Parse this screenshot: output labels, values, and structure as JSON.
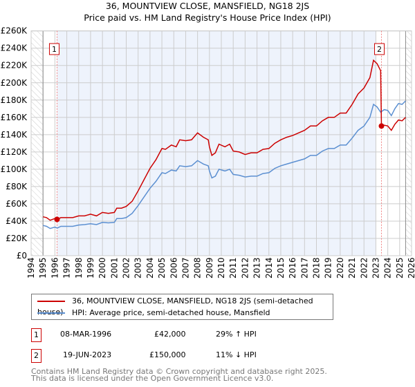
{
  "chart_data": {
    "type": "line",
    "title": "36, MOUNTVIEW CLOSE, MANSFIELD, NG18 2JS",
    "subtitle": "Price paid vs. HM Land Registry's House Price Index (HPI)",
    "xlim": [
      1994,
      2026
    ],
    "ylim": [
      0,
      260000
    ],
    "x_ticks": [
      "1994",
      "1995",
      "1996",
      "1997",
      "1998",
      "1999",
      "2000",
      "2001",
      "2002",
      "2003",
      "2004",
      "2005",
      "2006",
      "2007",
      "2008",
      "2009",
      "2010",
      "2011",
      "2012",
      "2013",
      "2014",
      "2015",
      "2016",
      "2017",
      "2018",
      "2019",
      "2020",
      "2021",
      "2022",
      "2023",
      "2024",
      "2025",
      "2026"
    ],
    "y_ticks": [
      "£0",
      "£20K",
      "£40K",
      "£60K",
      "£80K",
      "£100K",
      "£120K",
      "£140K",
      "£160K",
      "£180K",
      "£200K",
      "£220K",
      "£240K",
      "£260K"
    ],
    "grid": true,
    "colors": {
      "price": "#cc0000",
      "hpi": "#5b8fd1",
      "shade": "#eef3fc"
    },
    "series": [
      {
        "name": "36, MOUNTVIEW CLOSE, MANSFIELD, NG18 2JS (semi-detached house)",
        "x": [
          1995.0,
          1995.3,
          1995.6,
          1996.0,
          1996.18,
          1996.5,
          1997.0,
          1997.5,
          1998.0,
          1998.5,
          1999.0,
          1999.5,
          2000.0,
          2000.5,
          2001.0,
          2001.2,
          2001.6,
          2002.0,
          2002.5,
          2003.0,
          2003.5,
          2004.0,
          2004.5,
          2005.0,
          2005.3,
          2005.8,
          2006.2,
          2006.5,
          2007.0,
          2007.5,
          2008.0,
          2008.5,
          2008.9,
          2009.0,
          2009.2,
          2009.5,
          2009.8,
          2010.3,
          2010.7,
          2011.0,
          2011.5,
          2012.0,
          2012.5,
          2013.0,
          2013.5,
          2014.0,
          2014.5,
          2015.0,
          2015.5,
          2016.0,
          2016.5,
          2017.0,
          2017.5,
          2018.0,
          2018.5,
          2019.0,
          2019.5,
          2020.0,
          2020.5,
          2021.0,
          2021.5,
          2022.0,
          2022.5,
          2022.8,
          2023.1,
          2023.4,
          2023.47,
          2023.7,
          2024.0,
          2024.3,
          2024.6,
          2024.9,
          2025.2,
          2025.5
        ],
        "values": [
          45,
          44,
          41,
          43,
          42,
          44,
          44,
          44,
          46,
          46,
          48,
          46,
          50,
          49,
          50,
          55,
          55,
          57,
          63,
          75,
          88,
          101,
          111,
          124,
          123,
          128,
          126,
          134,
          133,
          134,
          142,
          137,
          134,
          126,
          116,
          119,
          129,
          126,
          129,
          121,
          120,
          117,
          119,
          119,
          123,
          124,
          130,
          134,
          137,
          139,
          142,
          145,
          150,
          150,
          156,
          160,
          160,
          165,
          165,
          175,
          187,
          194,
          206,
          226,
          222,
          214,
          150,
          151,
          150,
          145,
          152,
          157,
          156,
          160
        ]
      },
      {
        "name": "HPI: Average price, semi-detached house, Mansfield",
        "x": [
          1995.0,
          1995.3,
          1995.6,
          1996.0,
          1996.2,
          1996.5,
          1997.0,
          1997.5,
          1998.0,
          1998.5,
          1999.0,
          1999.5,
          2000.0,
          2000.5,
          2001.0,
          2001.2,
          2001.6,
          2002.0,
          2002.5,
          2003.0,
          2003.5,
          2004.0,
          2004.5,
          2005.0,
          2005.3,
          2005.8,
          2006.2,
          2006.5,
          2007.0,
          2007.5,
          2008.0,
          2008.5,
          2008.9,
          2009.0,
          2009.2,
          2009.5,
          2009.8,
          2010.3,
          2010.7,
          2011.0,
          2011.5,
          2012.0,
          2012.5,
          2013.0,
          2013.5,
          2014.0,
          2014.5,
          2015.0,
          2015.5,
          2016.0,
          2016.5,
          2017.0,
          2017.5,
          2018.0,
          2018.5,
          2019.0,
          2019.5,
          2020.0,
          2020.5,
          2021.0,
          2021.5,
          2022.0,
          2022.5,
          2022.8,
          2023.1,
          2023.4,
          2023.7,
          2024.0,
          2024.3,
          2024.6,
          2024.9,
          2025.2,
          2025.5
        ],
        "values": [
          35,
          34,
          31.5,
          33,
          32,
          34,
          34,
          34,
          35.5,
          36,
          37,
          36,
          38.5,
          38,
          38.5,
          43,
          43,
          44,
          49,
          58,
          68,
          78,
          86,
          96,
          95,
          99,
          98,
          104,
          103,
          104,
          110,
          106,
          104,
          98,
          90,
          92,
          100,
          98,
          100,
          94,
          93,
          91,
          92,
          92,
          95,
          96,
          101,
          104,
          106,
          108,
          110,
          112,
          116,
          116,
          121,
          124,
          124,
          128,
          128,
          136,
          145,
          150,
          160,
          175,
          172,
          166,
          169,
          168,
          162,
          170,
          176,
          175,
          179
        ]
      }
    ],
    "value_unit": "£K",
    "annotations": [
      {
        "label": "1",
        "x": 1996.18,
        "y": 42000
      },
      {
        "label": "2",
        "x": 2023.47,
        "y": 150000
      }
    ]
  },
  "legend": {
    "price": "36, MOUNTVIEW CLOSE, MANSFIELD, NG18 2JS (semi-detached house)",
    "hpi": "HPI: Average price, semi-detached house, Mansfield"
  },
  "sales": [
    {
      "num": "1",
      "date": "08-MAR-1996",
      "price": "£42,000",
      "hpi": "29% ↑ HPI"
    },
    {
      "num": "2",
      "date": "19-JUN-2023",
      "price": "£150,000",
      "hpi": "11% ↓ HPI"
    }
  ],
  "footer": {
    "line1": "Contains HM Land Registry data © Crown copyright and database right 2025.",
    "line2": "This data is licensed under the Open Government Licence v3.0."
  }
}
